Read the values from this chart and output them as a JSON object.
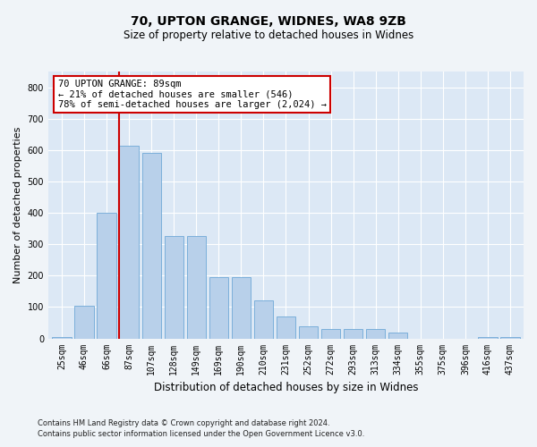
{
  "title1": "70, UPTON GRANGE, WIDNES, WA8 9ZB",
  "title2": "Size of property relative to detached houses in Widnes",
  "xlabel": "Distribution of detached houses by size in Widnes",
  "ylabel": "Number of detached properties",
  "categories": [
    "25sqm",
    "46sqm",
    "66sqm",
    "87sqm",
    "107sqm",
    "128sqm",
    "149sqm",
    "169sqm",
    "190sqm",
    "210sqm",
    "231sqm",
    "252sqm",
    "272sqm",
    "293sqm",
    "313sqm",
    "334sqm",
    "355sqm",
    "375sqm",
    "396sqm",
    "416sqm",
    "437sqm"
  ],
  "values": [
    5,
    105,
    400,
    615,
    590,
    325,
    325,
    195,
    195,
    120,
    70,
    40,
    30,
    30,
    30,
    20,
    0,
    0,
    0,
    5,
    5
  ],
  "bar_color": "#b8d0ea",
  "bar_edge_color": "#6fa8d6",
  "background_color": "#dce8f5",
  "annotation_line1": "70 UPTON GRANGE: 89sqm",
  "annotation_line2": "← 21% of detached houses are smaller (546)",
  "annotation_line3": "78% of semi-detached houses are larger (2,024) →",
  "annotation_box_facecolor": "#ffffff",
  "annotation_box_edgecolor": "#cc0000",
  "vline_color": "#cc0000",
  "vline_x_index": 3,
  "ylim": [
    0,
    850
  ],
  "yticks": [
    0,
    100,
    200,
    300,
    400,
    500,
    600,
    700,
    800
  ],
  "grid_color": "#ffffff",
  "fig_bg": "#f0f4f8",
  "footer1": "Contains HM Land Registry data © Crown copyright and database right 2024.",
  "footer2": "Contains public sector information licensed under the Open Government Licence v3.0.",
  "title1_fontsize": 10,
  "title2_fontsize": 8.5,
  "ylabel_fontsize": 8,
  "xlabel_fontsize": 8.5,
  "tick_fontsize": 7,
  "footer_fontsize": 6
}
